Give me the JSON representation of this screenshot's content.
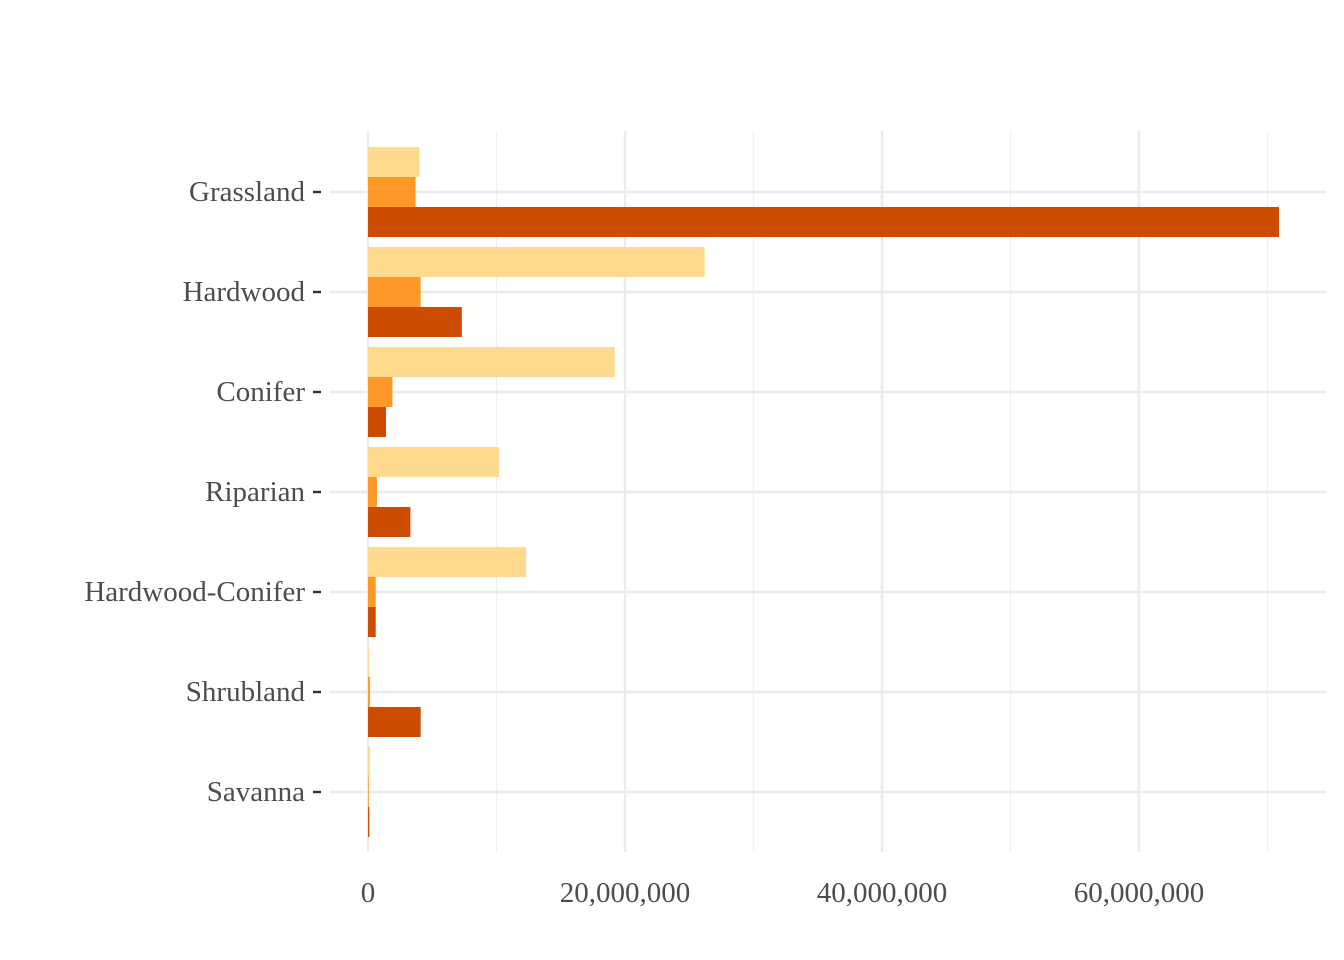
{
  "chart_data": {
    "type": "bar",
    "orientation": "horizontal",
    "title": "",
    "xlabel": "",
    "ylabel": "",
    "categories": [
      "Grassland",
      "Hardwood",
      "Conifer",
      "Riparian",
      "Hardwood-Conifer",
      "Shrubland",
      "Savanna"
    ],
    "series": [
      {
        "color": "#fed98e",
        "values": [
          4000000,
          26200000,
          19200000,
          10200000,
          12300000,
          100000,
          150000
        ]
      },
      {
        "color": "#fe9929",
        "values": [
          3700000,
          4100000,
          1900000,
          700000,
          600000,
          150000,
          50000
        ]
      },
      {
        "color": "#cc4c02",
        "values": [
          70900000,
          7300000,
          1400000,
          3300000,
          600000,
          4100000,
          100000
        ]
      }
    ],
    "xlim": [
      0,
      75000000
    ],
    "x_ticks": [
      0,
      20000000,
      40000000,
      60000000
    ],
    "x_tick_labels": [
      "0",
      "20,000,000",
      "40,000,000",
      "60,000,000"
    ],
    "grid": true,
    "legend": "none"
  }
}
